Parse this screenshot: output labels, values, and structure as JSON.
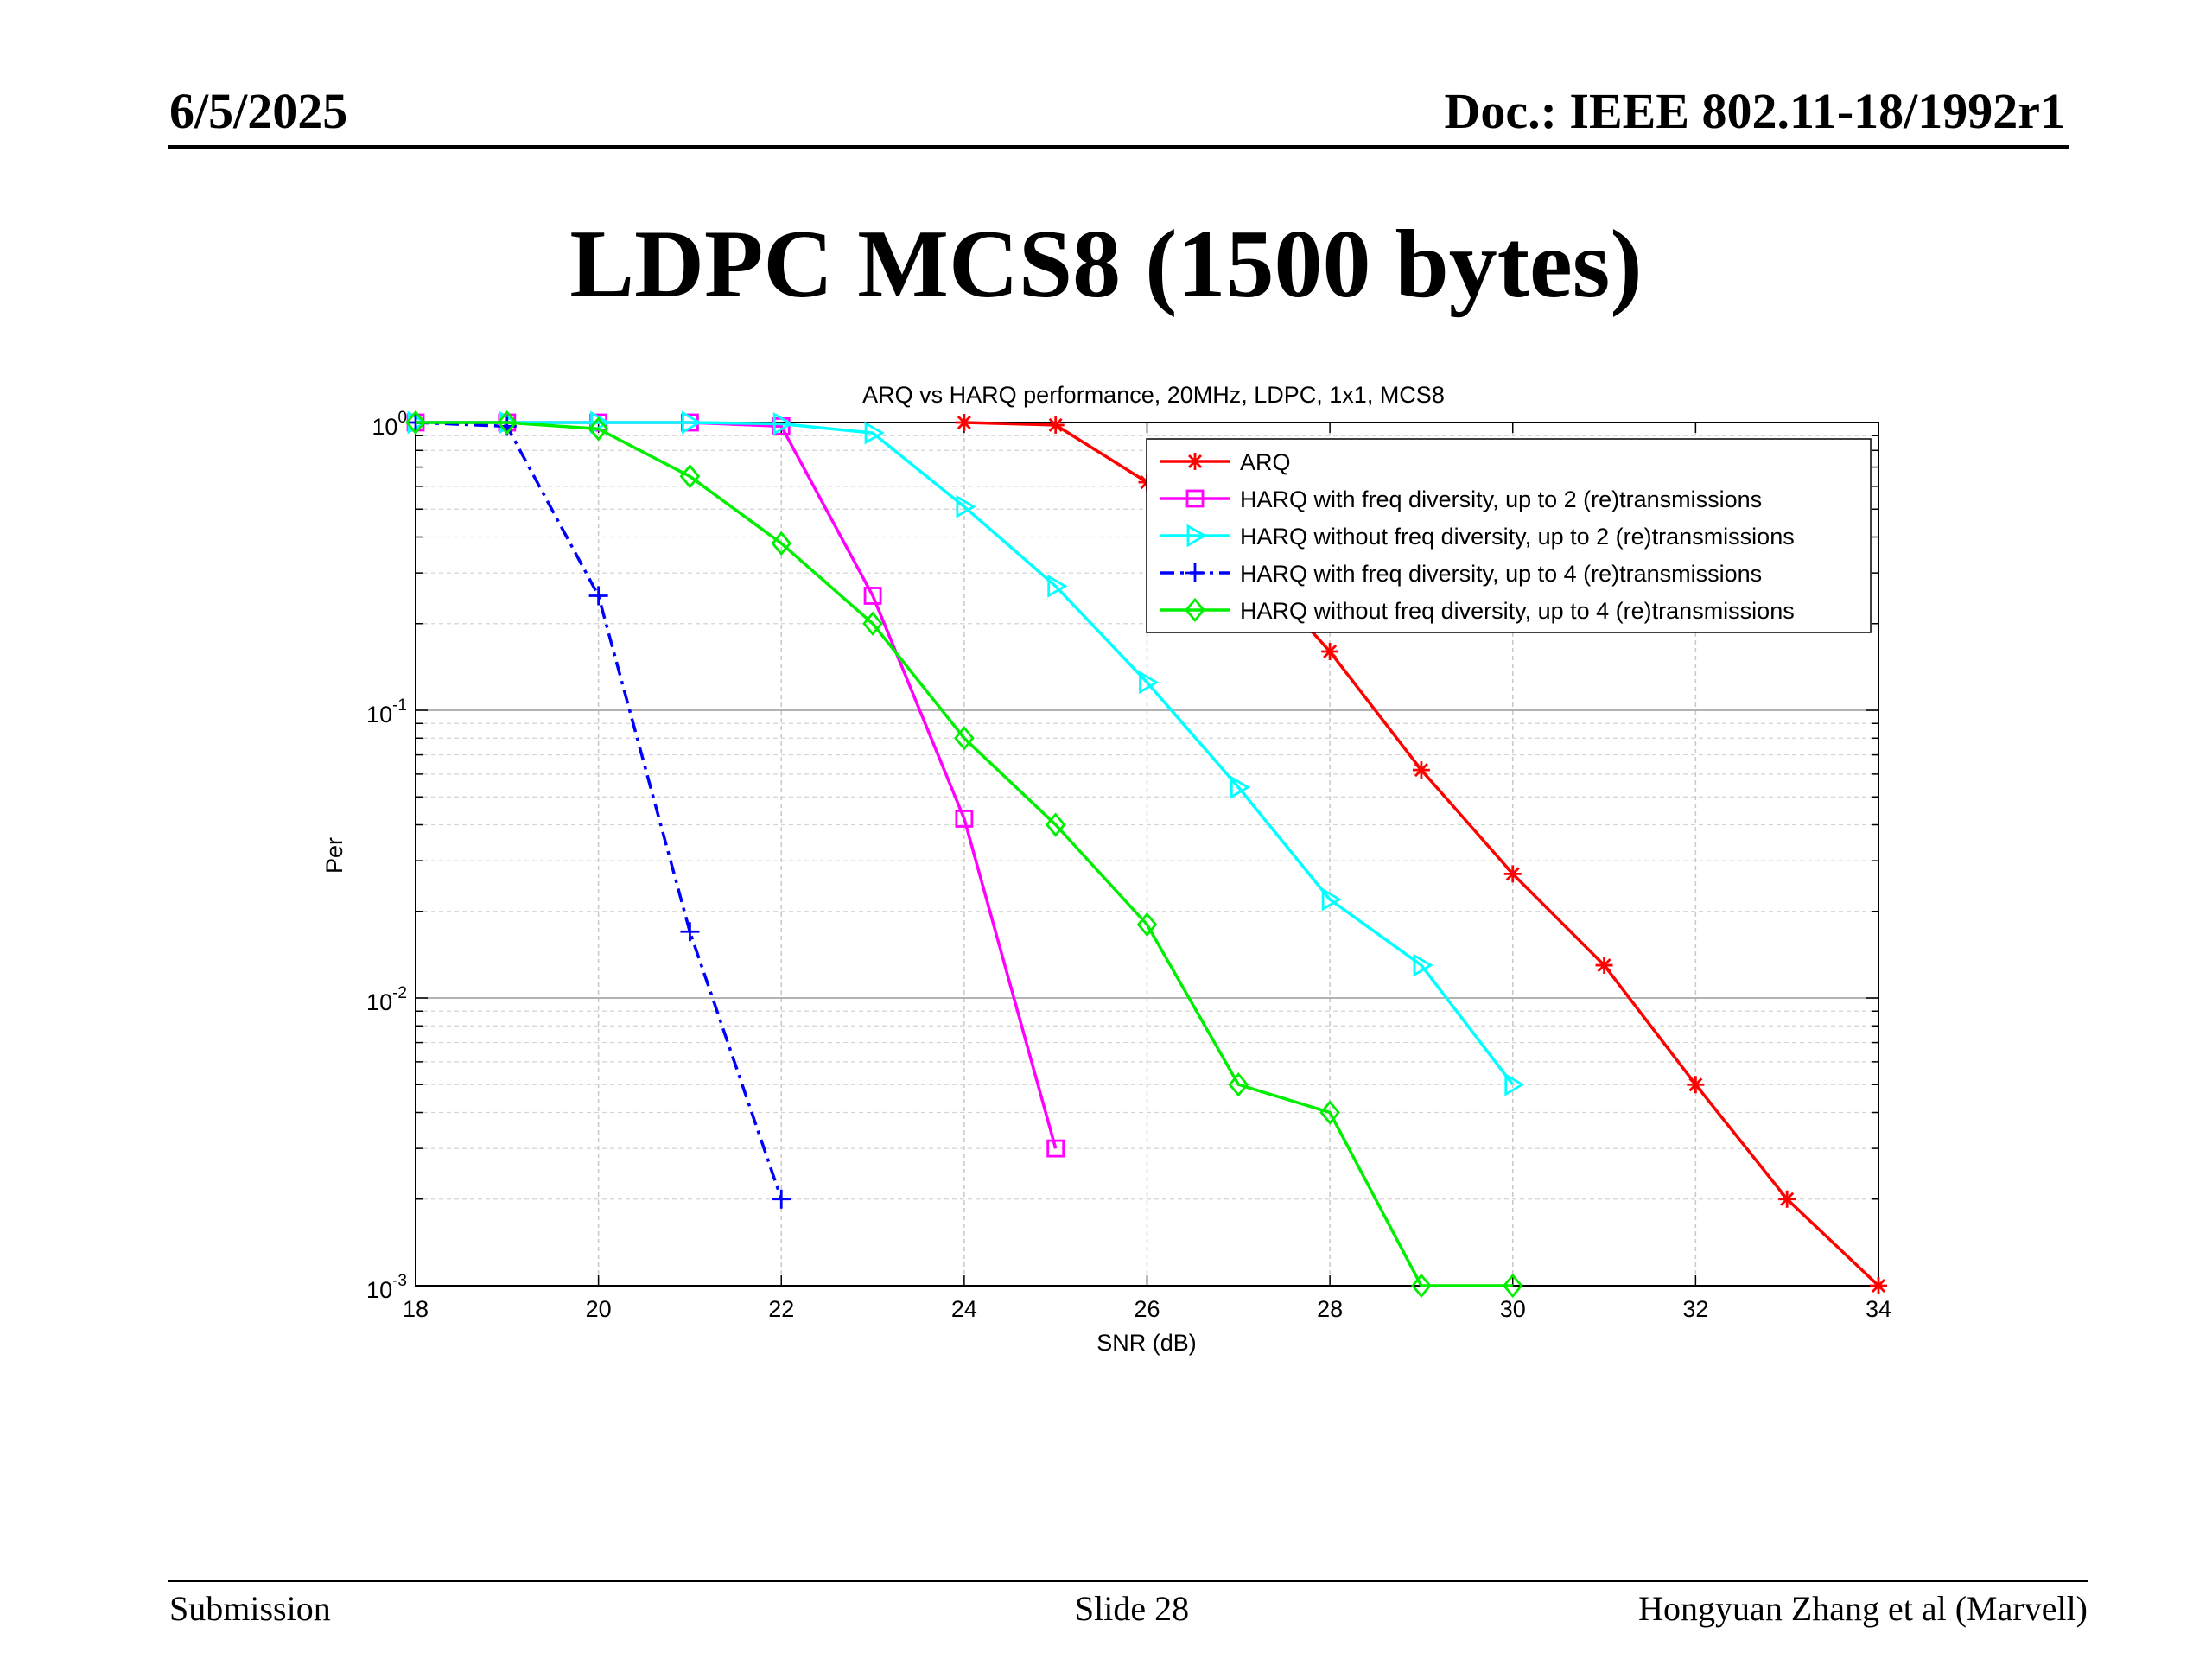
{
  "slide": {
    "date": "6/5/2025",
    "doc": "Doc.: IEEE 802.11-18/1992r1",
    "title": "LDPC MCS8 (1500 bytes)",
    "footer_left": "Submission",
    "footer_center": "Slide 28",
    "footer_right": "Hongyuan Zhang et al (Marvell)"
  },
  "chart_data": {
    "type": "line",
    "title": "ARQ vs HARQ performance, 20MHz, LDPC, 1x1, MCS8",
    "xlabel": "SNR (dB)",
    "ylabel": "Per",
    "xlim": [
      18,
      34
    ],
    "ylim": [
      0.001,
      1
    ],
    "yscale": "log",
    "grid": true,
    "legend_position": "top-right",
    "x_ticks": [
      "18",
      "20",
      "22",
      "24",
      "26",
      "28",
      "30",
      "32",
      "34"
    ],
    "y_ticks": [
      {
        "value": 1,
        "base": "10",
        "exp": "0"
      },
      {
        "value": 0.1,
        "base": "10",
        "exp": "-1"
      },
      {
        "value": 0.01,
        "base": "10",
        "exp": "-2"
      },
      {
        "value": 0.001,
        "base": "10",
        "exp": "-3"
      }
    ],
    "series": [
      {
        "name": "ARQ",
        "color": "#ff0000",
        "marker": "star",
        "dash": "solid",
        "x": [
          24,
          25,
          26,
          27,
          28,
          29,
          30,
          31,
          32,
          33,
          34
        ],
        "y": [
          1.0,
          0.98,
          0.62,
          0.36,
          0.16,
          0.062,
          0.027,
          0.013,
          0.005,
          0.002,
          0.001
        ]
      },
      {
        "name": "HARQ with freq diversity, up to 2 (re)transmissions",
        "color": "#ff00ff",
        "marker": "square",
        "dash": "solid",
        "x": [
          18,
          19,
          20,
          21,
          22,
          23,
          24,
          25
        ],
        "y": [
          1.0,
          1.0,
          1.0,
          1.0,
          0.97,
          0.25,
          0.042,
          0.003
        ]
      },
      {
        "name": "HARQ without freq diversity, up to 2 (re)transmissions",
        "color": "#00ffff",
        "marker": "triangle",
        "dash": "solid",
        "x": [
          18,
          19,
          20,
          21,
          22,
          23,
          24,
          25,
          26,
          27,
          28,
          29,
          30
        ],
        "y": [
          1.0,
          1.0,
          1.0,
          1.0,
          0.99,
          0.92,
          0.51,
          0.27,
          0.125,
          0.054,
          0.022,
          0.013,
          0.005
        ]
      },
      {
        "name": "HARQ with freq diversity, up to 4 (re)transmissions",
        "color": "#0000ff",
        "marker": "plus",
        "dash": "dashdot",
        "x": [
          18,
          19,
          20,
          21,
          22
        ],
        "y": [
          1.0,
          0.97,
          0.25,
          0.017,
          0.002
        ]
      },
      {
        "name": "HARQ without freq diversity, up to 4 (re)transmissions",
        "color": "#00ee00",
        "marker": "diamond",
        "dash": "solid",
        "x": [
          18,
          19,
          20,
          21,
          22,
          23,
          24,
          25,
          26,
          27,
          28,
          29,
          30
        ],
        "y": [
          1.0,
          1.0,
          0.95,
          0.65,
          0.38,
          0.2,
          0.08,
          0.04,
          0.018,
          0.005,
          0.004,
          0.001,
          0.001
        ]
      }
    ]
  }
}
